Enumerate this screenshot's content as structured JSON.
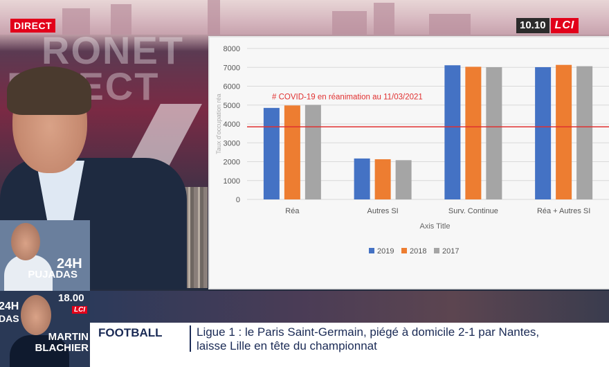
{
  "broadcast": {
    "live_label": "DIRECT",
    "clock": "10.10",
    "channel_logo": "LCI",
    "colors": {
      "brand_red": "#e2001a",
      "ticker_text": "#1a2a55"
    }
  },
  "studio": {
    "wall_text_1": "RONET",
    "wall_text_2": "DIRECT"
  },
  "promos": [
    {
      "show": "24H",
      "name": "PUJADAS",
      "time": "",
      "logo": ""
    },
    {
      "show": "24H",
      "name_line1": "MARTIN",
      "name_line2": "BLACHIER",
      "time": "18.00",
      "logo": "LCI",
      "side_label": "DAS"
    }
  ],
  "ticker": {
    "category": "FOOTBALL",
    "line1": "Ligue 1 : le Paris Saint-Germain, piégé à domicile 2-1 par Nantes,",
    "line2": "laisse Lille en tête du championnat"
  },
  "chart_data": {
    "type": "bar",
    "categories": [
      "Réa",
      "Autres SI",
      "Surv. Continue",
      "Réa + Autres SI"
    ],
    "series": [
      {
        "name": "2019",
        "color": "#4472c4",
        "values": [
          4850,
          2170,
          7110,
          7010
        ]
      },
      {
        "name": "2018",
        "color": "#ed7d31",
        "values": [
          4980,
          2130,
          7030,
          7130
        ]
      },
      {
        "name": "2017",
        "color": "#a5a5a5",
        "values": [
          5010,
          2080,
          7010,
          7060
        ]
      }
    ],
    "ylim": [
      0,
      8000
    ],
    "yticks": [
      0,
      1000,
      2000,
      3000,
      4000,
      5000,
      6000,
      7000,
      8000
    ],
    "xlabel": "Axis Title",
    "ylabel": "Taux d'occupation réa",
    "reference_line": {
      "value": 3850,
      "label": "# COVID-19 en réanimation au 11/03/2021",
      "color": "#e03030"
    },
    "legend_position": "bottom",
    "grid": true
  }
}
